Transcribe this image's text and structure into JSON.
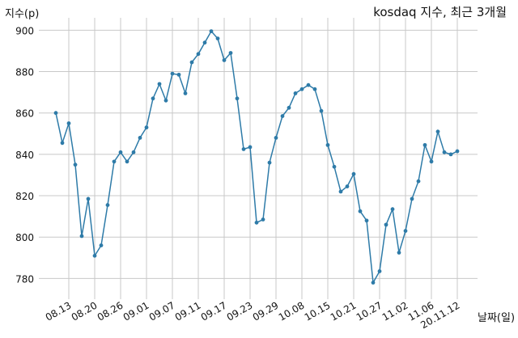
{
  "chart_data": {
    "type": "line",
    "title": "kosdaq 지수, 최근 3개월",
    "ylabel": "지수(p)",
    "xlabel": "날짜(일)",
    "ylim": [
      770,
      906
    ],
    "yticks": [
      780,
      800,
      820,
      840,
      860,
      880,
      900
    ],
    "xtick_labels": [
      "08.13",
      "08.20",
      "08.26",
      "09.01",
      "09.07",
      "09.11",
      "09.17",
      "09.23",
      "09.29",
      "10.08",
      "10.15",
      "10.21",
      "10.27",
      "11.02",
      "11.06",
      "20.11.12"
    ],
    "xtick_positions": [
      2,
      6,
      10,
      14,
      18,
      22,
      26,
      30,
      34,
      38,
      42,
      46,
      50,
      54,
      58,
      62
    ],
    "grid": true,
    "series": [
      {
        "color": "#2e7ba8",
        "values": [
          860,
          845.5,
          855,
          835,
          800.5,
          818.5,
          791,
          796,
          815.5,
          836.5,
          841,
          836.5,
          841,
          848,
          853,
          867,
          874,
          866,
          879,
          878.5,
          869.5,
          884.5,
          888.5,
          894,
          899.5,
          896,
          885.5,
          889,
          867,
          842.5,
          843.5,
          807,
          808.5,
          836,
          848,
          858.5,
          862.5,
          869.5,
          871.5,
          873.5,
          871.5,
          861,
          844.5,
          834,
          822,
          824.5,
          830.5,
          812.5,
          808,
          778,
          783.5,
          806,
          813.5,
          792.5,
          803,
          818.5,
          827,
          844.5,
          836.5,
          851,
          841,
          840,
          841.5
        ]
      }
    ]
  }
}
